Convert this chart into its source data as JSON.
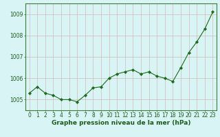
{
  "x": [
    0,
    1,
    2,
    3,
    4,
    5,
    6,
    7,
    8,
    9,
    10,
    11,
    12,
    13,
    14,
    15,
    16,
    17,
    18,
    19,
    20,
    21,
    22,
    23
  ],
  "y": [
    1005.3,
    1005.6,
    1005.3,
    1005.2,
    1005.0,
    1005.0,
    1004.9,
    1005.2,
    1005.55,
    1005.6,
    1006.0,
    1006.2,
    1006.3,
    1006.4,
    1006.2,
    1006.3,
    1006.1,
    1006.0,
    1005.85,
    1006.5,
    1007.2,
    1007.7,
    1008.3,
    1009.1
  ],
  "line_color": "#1a6b1a",
  "marker": "D",
  "marker_size": 2.2,
  "bg_color": "#d9f4f4",
  "grid_color_v": "#d4b8b8",
  "grid_color_h": "#d4b8b8",
  "border_color": "#3a7a3a",
  "ylabel_ticks": [
    1005,
    1006,
    1007,
    1008,
    1009
  ],
  "ylim": [
    1004.5,
    1009.5
  ],
  "xlim": [
    -0.5,
    23.5
  ],
  "xlabel": "Graphe pression niveau de la mer (hPa)",
  "xlabel_fontsize": 6.5,
  "tick_fontsize": 5.5,
  "tick_color": "#1a5c1a",
  "linewidth": 0.8
}
